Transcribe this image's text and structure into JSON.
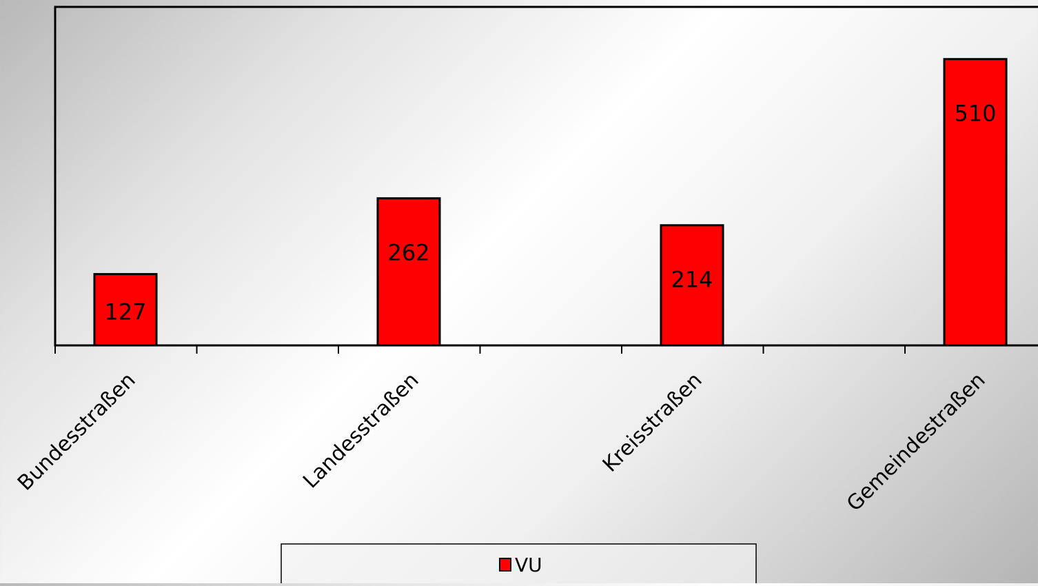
{
  "chart_data": {
    "type": "bar",
    "title": "",
    "xlabel": "",
    "ylabel": "",
    "categories": [
      "Bundesstraßen",
      "Landesstraßen",
      "Kreisstraßen",
      "Gemeindestraßen"
    ],
    "series": [
      {
        "name": "VU",
        "values": [
          127,
          262,
          214,
          510
        ],
        "color": "#ff0000"
      }
    ],
    "ylim": [
      0,
      603
    ],
    "grid": false,
    "legend": "bottom-center",
    "data_labels": true
  }
}
